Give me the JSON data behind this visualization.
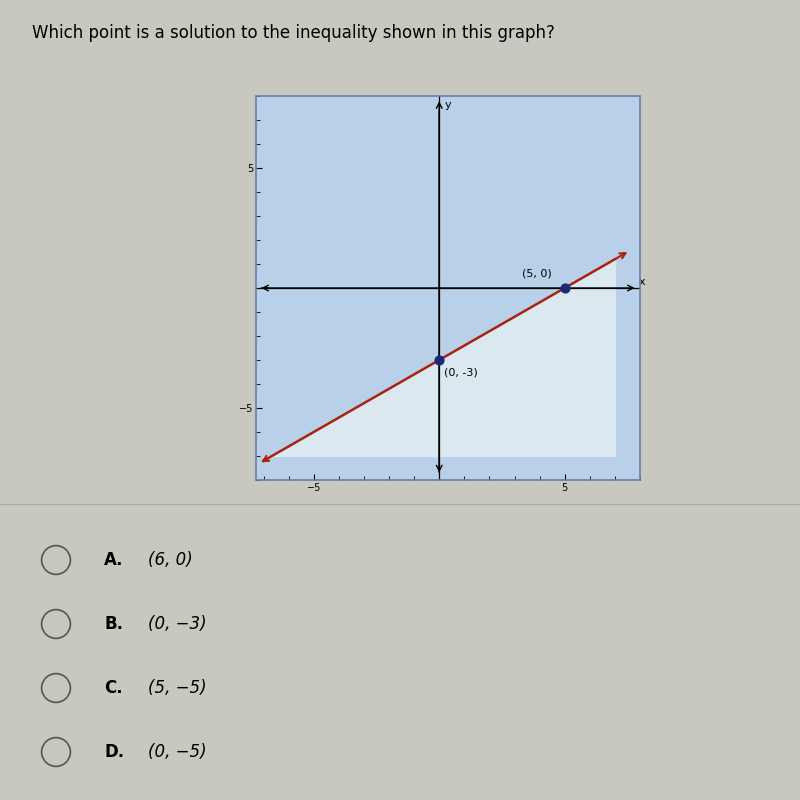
{
  "title": "Which point is a solution to the inequality shown in this graph?",
  "title_fontsize": 12,
  "page_bg": "#c8c8c0",
  "graph_bg": "#b8d0e8",
  "below_line_color": "#dce8f0",
  "xlim": [
    -7,
    7
  ],
  "ylim": [
    -7,
    7
  ],
  "line_y_intercept": -3,
  "line_slope": 0.6,
  "line_color": "#aa2211",
  "line_width": 1.8,
  "point1": [
    5,
    0
  ],
  "point2": [
    0,
    -3
  ],
  "point_color": "#1a2a7a",
  "point_size": 40,
  "label1": "(5, 0)",
  "label2": "(0, -3)",
  "label_fontsize": 8,
  "answers": [
    {
      "label": "A.",
      "text": "(6, 0)"
    },
    {
      "label": "B.",
      "text": "(0, −3)"
    },
    {
      "label": "C.",
      "text": "(5, −5)"
    },
    {
      "label": "D.",
      "text": "(0, −5)"
    }
  ],
  "answer_fontsize": 12
}
